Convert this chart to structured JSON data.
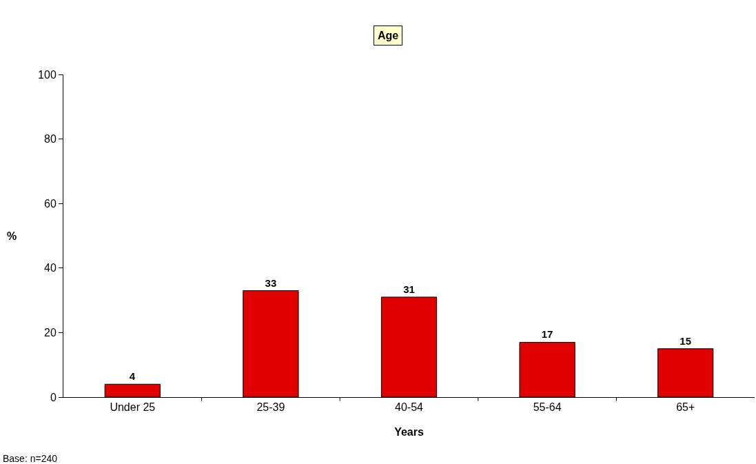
{
  "chart_data": {
    "type": "bar",
    "title": "Age",
    "xlabel": "Years",
    "ylabel": "%",
    "categories": [
      "Under 25",
      "25-39",
      "40-54",
      "55-64",
      "65+"
    ],
    "values": [
      4,
      33,
      31,
      17,
      15
    ],
    "color": "#e00000",
    "data_labels": true,
    "ylim": [
      0,
      100
    ],
    "yticks": [
      0,
      20,
      40,
      60,
      80,
      100
    ],
    "grid": false,
    "annotations": [
      "Base: n=240"
    ]
  }
}
